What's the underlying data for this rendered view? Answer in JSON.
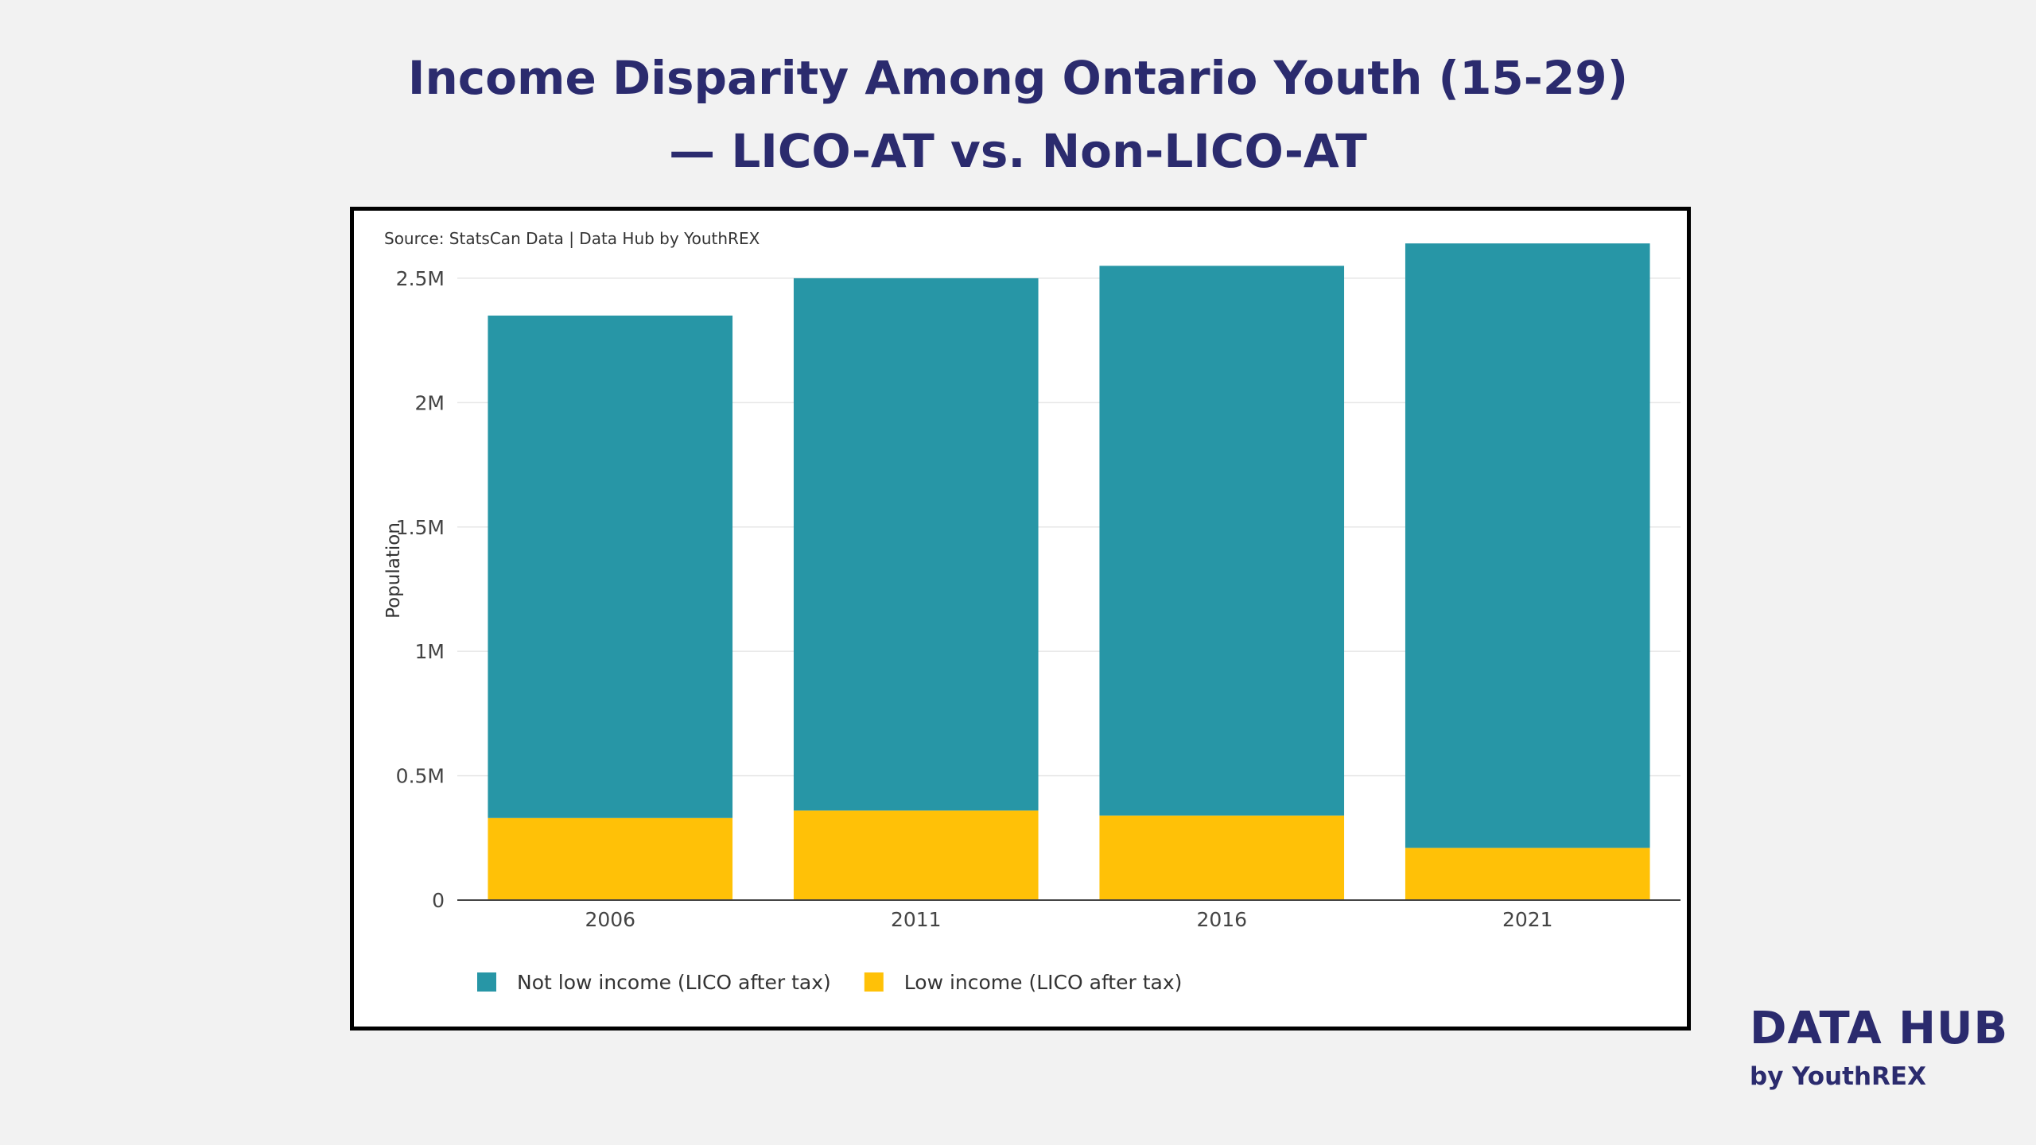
{
  "title": {
    "line1": "Income Disparity Among Ontario Youth (15-29)",
    "line2": "— LICO-AT vs. Non-LICO-AT"
  },
  "chart_data": {
    "type": "bar",
    "stacked": true,
    "source": "Source: StatsCan Data | Data Hub by YouthREX",
    "ylabel": "Population",
    "xlabel": "",
    "categories": [
      "2006",
      "2011",
      "2016",
      "2021"
    ],
    "ylim": [
      0,
      2650000
    ],
    "yticks": [
      0,
      500000,
      1000000,
      1500000,
      2000000,
      2500000
    ],
    "ytick_labels": [
      "0",
      "0.5M",
      "1M",
      "1.5M",
      "2M",
      "2.5M"
    ],
    "series": [
      {
        "name": "Low income (LICO after tax)",
        "color": "#FFC107",
        "values": [
          330000,
          360000,
          340000,
          210000
        ]
      },
      {
        "name": "Not low income (LICO after tax)",
        "color": "#2796A6",
        "values": [
          2020000,
          2140000,
          2210000,
          2430000
        ]
      }
    ],
    "legend_order": [
      1,
      0
    ],
    "legend_position": "bottom-left",
    "grid": true
  },
  "brand": {
    "name": "DATA HUB",
    "sub": "by YouthREX"
  },
  "colors": {
    "title": "#2B2B6E",
    "background": "#F2F2F2",
    "not_low_income": "#2796A6",
    "low_income": "#FFC107"
  }
}
